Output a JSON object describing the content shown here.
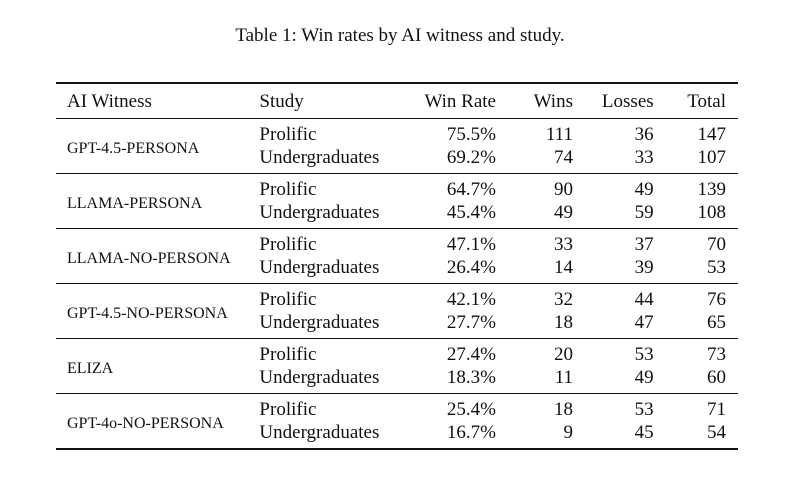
{
  "caption": "Table 1: Win rates by AI witness and study.",
  "headers": {
    "model": "AI Witness",
    "study": "Study",
    "win_rate": "Win Rate",
    "wins": "Wins",
    "losses": "Losses",
    "total": "Total"
  },
  "rows": [
    {
      "model": "GPT-4.5-PERSONA",
      "prolific": {
        "study": "Prolific",
        "win_rate": "75.5%",
        "wins": "111",
        "losses": "36",
        "total": "147"
      },
      "undergrad": {
        "study": "Undergraduates",
        "win_rate": "69.2%",
        "wins": "74",
        "losses": "33",
        "total": "107"
      }
    },
    {
      "model": "LLAMA-PERSONA",
      "prolific": {
        "study": "Prolific",
        "win_rate": "64.7%",
        "wins": "90",
        "losses": "49",
        "total": "139"
      },
      "undergrad": {
        "study": "Undergraduates",
        "win_rate": "45.4%",
        "wins": "49",
        "losses": "59",
        "total": "108"
      }
    },
    {
      "model": "LLAMA-NO-PERSONA",
      "prolific": {
        "study": "Prolific",
        "win_rate": "47.1%",
        "wins": "33",
        "losses": "37",
        "total": "70"
      },
      "undergrad": {
        "study": "Undergraduates",
        "win_rate": "26.4%",
        "wins": "14",
        "losses": "39",
        "total": "53"
      }
    },
    {
      "model": "GPT-4.5-NO-PERSONA",
      "prolific": {
        "study": "Prolific",
        "win_rate": "42.1%",
        "wins": "32",
        "losses": "44",
        "total": "76"
      },
      "undergrad": {
        "study": "Undergraduates",
        "win_rate": "27.7%",
        "wins": "18",
        "losses": "47",
        "total": "65"
      }
    },
    {
      "model": "ELIZA",
      "prolific": {
        "study": "Prolific",
        "win_rate": "27.4%",
        "wins": "20",
        "losses": "53",
        "total": "73"
      },
      "undergrad": {
        "study": "Undergraduates",
        "win_rate": "18.3%",
        "wins": "11",
        "losses": "49",
        "total": "60"
      }
    },
    {
      "model": "GPT-4o-NO-PERSONA",
      "prolific": {
        "study": "Prolific",
        "win_rate": "25.4%",
        "wins": "18",
        "losses": "53",
        "total": "71"
      },
      "undergrad": {
        "study": "Undergraduates",
        "win_rate": "16.7%",
        "wins": "9",
        "losses": "45",
        "total": "54"
      }
    }
  ]
}
